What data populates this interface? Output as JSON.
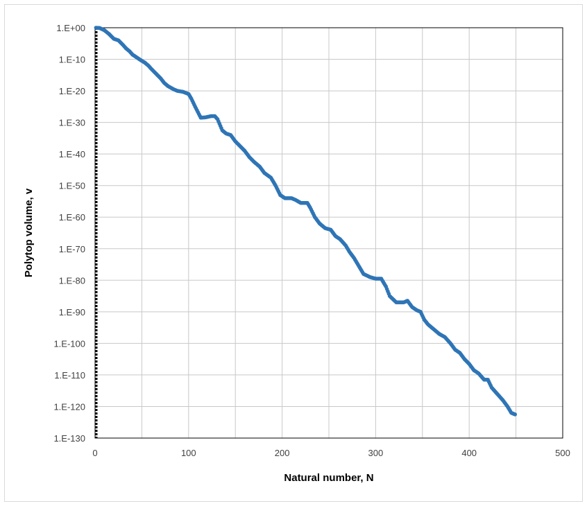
{
  "chart_data": {
    "type": "scatter",
    "title": "",
    "xlabel": "Natural number, N",
    "ylabel": "Polytop volume, v",
    "xlim": [
      0,
      500
    ],
    "ylim_log10": [
      -130,
      0
    ],
    "y_scale": "log",
    "grid": true,
    "legend": "none",
    "x_ticks": [
      "0",
      "100",
      "200",
      "300",
      "400",
      "500"
    ],
    "y_ticks": [
      "1.E+00",
      "1.E-10",
      "1.E-20",
      "1.E-30",
      "1.E-40",
      "1.E-50",
      "1.E-60",
      "1.E-70",
      "1.E-80",
      "1.E-90",
      "1.E-100",
      "1.E-110",
      "1.E-120",
      "1.E-130"
    ],
    "y_tick_log10": [
      0,
      -10,
      -20,
      -30,
      -40,
      -50,
      -60,
      -70,
      -80,
      -90,
      -100,
      -110,
      -120,
      -130
    ],
    "series": [
      {
        "color": "#2e75b6",
        "marker": "circle",
        "points_log10_v": [
          [
            1,
            0
          ],
          [
            5,
            -0.1
          ],
          [
            10,
            -0.8
          ],
          [
            15,
            -2
          ],
          [
            20,
            -3.5
          ],
          [
            25,
            -4
          ],
          [
            30,
            -5.5
          ],
          [
            33,
            -6.5
          ],
          [
            37,
            -7.5
          ],
          [
            40,
            -8.5
          ],
          [
            45,
            -9.5
          ],
          [
            50,
            -10.5
          ],
          [
            53,
            -11
          ],
          [
            57,
            -12
          ],
          [
            60,
            -13
          ],
          [
            65,
            -14.5
          ],
          [
            70,
            -16
          ],
          [
            74,
            -17.5
          ],
          [
            78,
            -18.5
          ],
          [
            84,
            -19.5
          ],
          [
            88,
            -20
          ],
          [
            94,
            -20.3
          ],
          [
            100,
            -21
          ],
          [
            103,
            -22.5
          ],
          [
            107,
            -25
          ],
          [
            113,
            -28.5
          ],
          [
            118,
            -28.4
          ],
          [
            124,
            -28
          ],
          [
            128,
            -28
          ],
          [
            131,
            -29
          ],
          [
            136,
            -32.5
          ],
          [
            140,
            -33.5
          ],
          [
            145,
            -34
          ],
          [
            150,
            -36
          ],
          [
            155,
            -37.5
          ],
          [
            160,
            -39
          ],
          [
            165,
            -41
          ],
          [
            170,
            -42.5
          ],
          [
            176,
            -44
          ],
          [
            181,
            -46
          ],
          [
            188,
            -47.5
          ],
          [
            193,
            -50
          ],
          [
            198,
            -53
          ],
          [
            203,
            -54
          ],
          [
            210,
            -54
          ],
          [
            214,
            -54.5
          ],
          [
            220,
            -55.5
          ],
          [
            227,
            -55.5
          ],
          [
            230,
            -57
          ],
          [
            235,
            -60
          ],
          [
            240,
            -62
          ],
          [
            246,
            -63.5
          ],
          [
            252,
            -64
          ],
          [
            257,
            -66
          ],
          [
            262,
            -67
          ],
          [
            268,
            -69
          ],
          [
            272,
            -71
          ],
          [
            277,
            -73
          ],
          [
            282,
            -75.5
          ],
          [
            287,
            -78
          ],
          [
            294,
            -79
          ],
          [
            300,
            -79.5
          ],
          [
            306,
            -79.5
          ],
          [
            311,
            -82
          ],
          [
            315,
            -85
          ],
          [
            322,
            -87
          ],
          [
            330,
            -87
          ],
          [
            334,
            -86.5
          ],
          [
            339,
            -88.5
          ],
          [
            344,
            -89.5
          ],
          [
            348,
            -90
          ],
          [
            352,
            -92.5
          ],
          [
            356,
            -94
          ],
          [
            362,
            -95.5
          ],
          [
            368,
            -97
          ],
          [
            374,
            -98
          ],
          [
            380,
            -100
          ],
          [
            385,
            -102
          ],
          [
            390,
            -103
          ],
          [
            395,
            -105
          ],
          [
            400,
            -106.5
          ],
          [
            405,
            -108.5
          ],
          [
            410,
            -109.5
          ],
          [
            416,
            -111.5
          ],
          [
            420,
            -111.5
          ],
          [
            424,
            -114
          ],
          [
            430,
            -116
          ],
          [
            436,
            -118
          ],
          [
            441,
            -120
          ],
          [
            445,
            -122
          ],
          [
            449,
            -122.5
          ]
        ]
      }
    ]
  }
}
